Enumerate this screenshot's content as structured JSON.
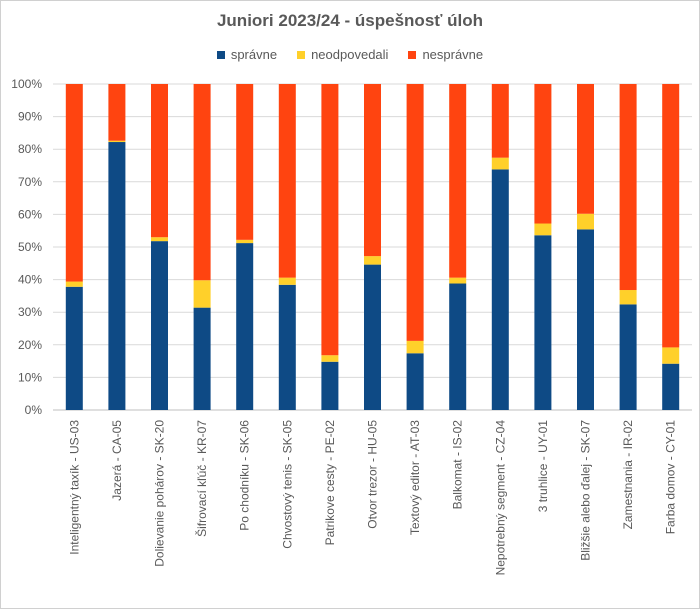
{
  "chart_data": {
    "type": "bar",
    "stacked": true,
    "title": "Juniori 2023/24 - úspešnosť úloh",
    "xlabel": "",
    "ylabel": "",
    "ylim": [
      0,
      100
    ],
    "y_ticks": [
      "0%",
      "10%",
      "20%",
      "30%",
      "40%",
      "50%",
      "60%",
      "70%",
      "80%",
      "90%",
      "100%"
    ],
    "legend_position": "top",
    "grid": true,
    "categories": [
      "Inteligentný taxík - US-03",
      "Jazerá - CA-05",
      "Dolievanie pohárov - SK-20",
      "Šifrovací kľúč - KR-07",
      "Po chodníku - SK-06",
      "Chvostový tenis - SK-05",
      "Patrikove cesty - PE-02",
      "Otvor trezor - HU-05",
      "Textový editor - AT-03",
      "Balkomat - IS-02",
      "Nepotrebný segment - CZ-04",
      "3 truhlice - UY-01",
      "Bližšie alebo ďalej - SK-07",
      "Zamestnania - IR-02",
      "Farba domov - CY-01"
    ],
    "series": [
      {
        "name": "správne",
        "color": "#0e4a85",
        "values": [
          37.8,
          82.2,
          51.8,
          31.4,
          51.2,
          38.4,
          14.8,
          44.6,
          17.4,
          38.8,
          73.8,
          53.6,
          55.4,
          32.4,
          14.2
        ]
      },
      {
        "name": "neodpovedali",
        "color": "#ffd02a",
        "values": [
          1.6,
          0.4,
          1.2,
          8.4,
          1.0,
          2.2,
          2.0,
          2.6,
          3.8,
          1.8,
          3.6,
          3.6,
          4.8,
          4.4,
          5.0
        ]
      },
      {
        "name": "nesprávne",
        "color": "#ff4410",
        "values": [
          60.6,
          17.4,
          47.0,
          60.2,
          47.8,
          59.4,
          83.2,
          52.8,
          78.8,
          59.4,
          22.6,
          42.8,
          39.8,
          63.2,
          80.8
        ]
      }
    ]
  }
}
